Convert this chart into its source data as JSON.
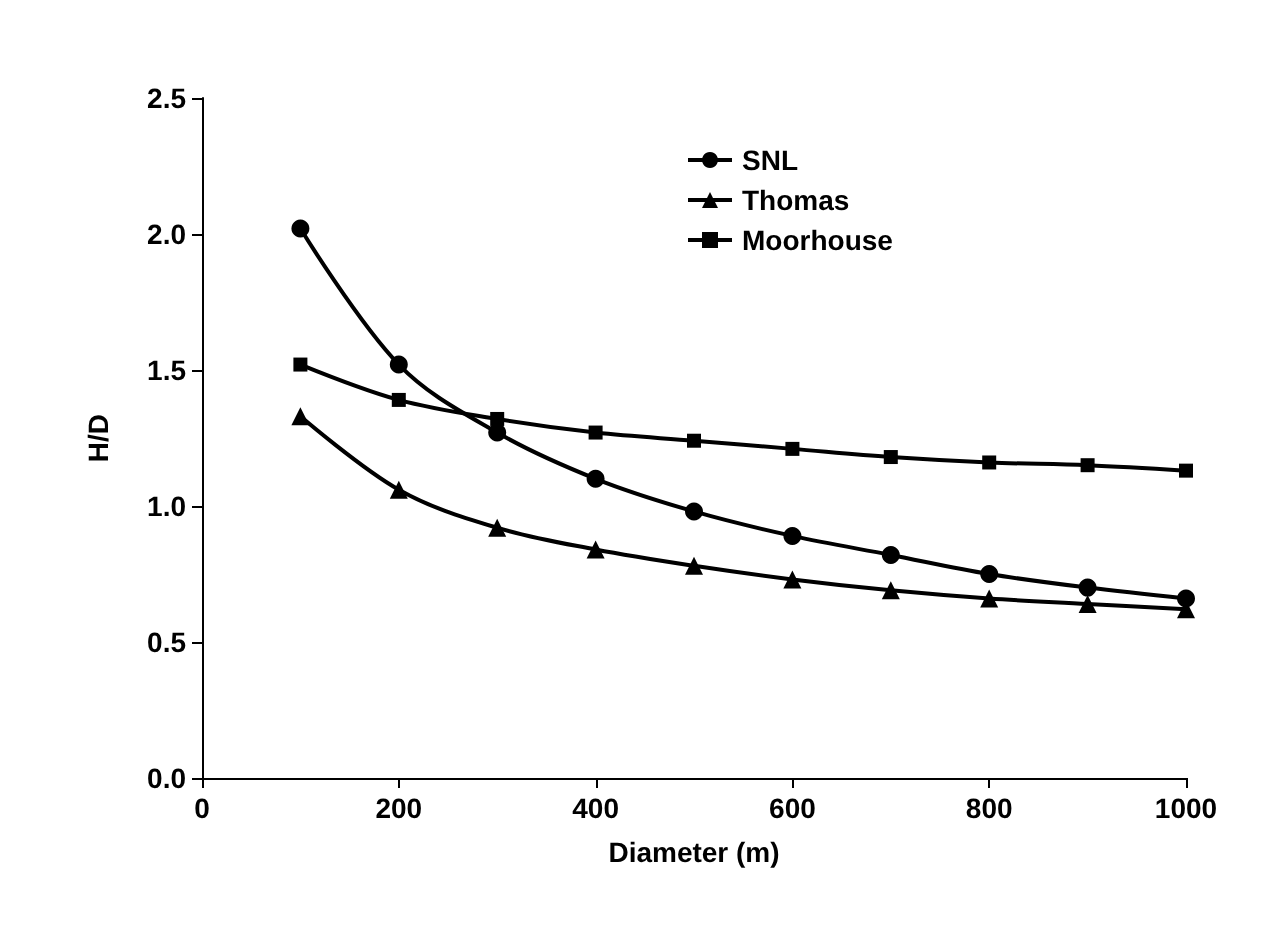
{
  "chart_data": {
    "type": "line",
    "xlabel": "Diameter (m)",
    "ylabel": "H/D",
    "x": [
      100,
      200,
      300,
      400,
      500,
      600,
      700,
      800,
      900,
      1000
    ],
    "xlim": [
      0,
      1000
    ],
    "xticks": [
      0,
      200,
      400,
      600,
      800,
      1000
    ],
    "ylim": [
      0,
      2.5
    ],
    "yticks": [
      {
        "value": 0,
        "label": "0.0"
      },
      {
        "value": 0.5,
        "label": "0.5"
      },
      {
        "value": 1,
        "label": "1.0"
      },
      {
        "value": 1.5,
        "label": "1.5"
      },
      {
        "value": 2,
        "label": "2.0"
      },
      {
        "value": 2.5,
        "label": "2.5"
      }
    ],
    "grid": false,
    "legend": "top right",
    "line_style": "solid",
    "series": [
      {
        "name": "SNL",
        "color": "#000000",
        "marker": "circle",
        "values": [
          2.02,
          1.52,
          1.27,
          1.1,
          0.98,
          0.89,
          0.82,
          0.75,
          0.7,
          0.66
        ]
      },
      {
        "name": "Thomas",
        "color": "#000000",
        "marker": "triangle",
        "values": [
          1.33,
          1.06,
          0.92,
          0.84,
          0.78,
          0.73,
          0.69,
          0.66,
          0.64,
          0.62
        ]
      },
      {
        "name": "Moorhouse",
        "color": "#000000",
        "marker": "square",
        "values": [
          1.52,
          1.39,
          1.32,
          1.27,
          1.24,
          1.21,
          1.18,
          1.16,
          1.15,
          1.13
        ]
      }
    ]
  }
}
